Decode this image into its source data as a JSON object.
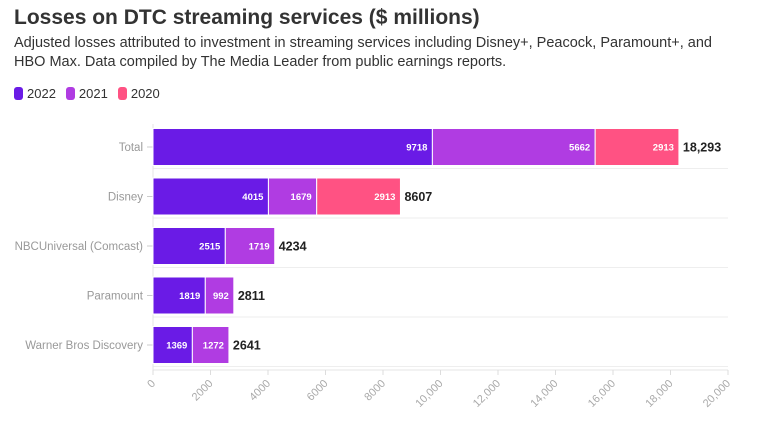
{
  "title": "Losses on DTC streaming services ($ millions)",
  "subtitle": "Adjusted losses attributed to investment in streaming services including Disney+, Peacock, Paramount+, and HBO Max. Data compiled by The Media Leader from public earnings reports.",
  "chart_data": {
    "type": "bar",
    "orientation": "horizontal",
    "stacked": true,
    "categories": [
      "Total",
      "Disney",
      "NBCUniversal (Comcast)",
      "Paramount",
      "Warner Bros Discovery"
    ],
    "series": [
      {
        "name": "2022",
        "color": "#6a1be6",
        "values": [
          9718,
          4015,
          2515,
          1819,
          1369
        ]
      },
      {
        "name": "2021",
        "color": "#b03ce2",
        "values": [
          5662,
          1679,
          1719,
          992,
          1272
        ]
      },
      {
        "name": "2020",
        "color": "#ff5283",
        "values": [
          2913,
          2913,
          null,
          null,
          null
        ]
      }
    ],
    "totals": [
      "18,293",
      "8607",
      "4234",
      "2811",
      "2641"
    ],
    "xlim": [
      0,
      20000
    ],
    "xticks": [
      "0",
      "2000",
      "4000",
      "6000",
      "8000",
      "10,000",
      "12,000",
      "14,000",
      "16,000",
      "18,000",
      "20,000"
    ],
    "grid": true,
    "legend": "top-left"
  }
}
